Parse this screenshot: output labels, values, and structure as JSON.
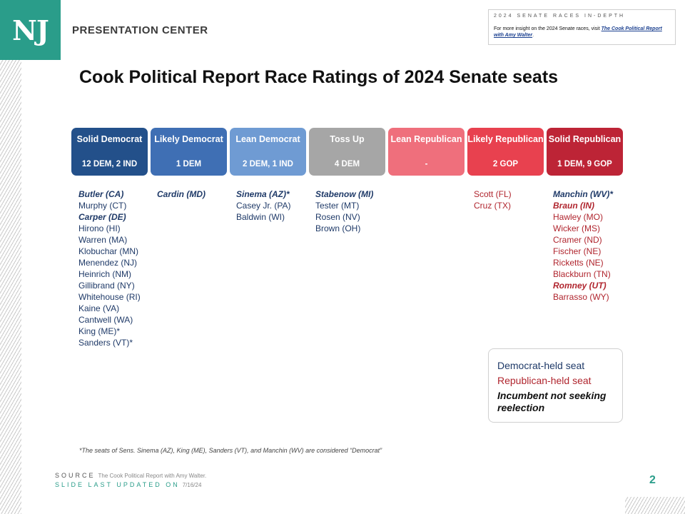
{
  "header": {
    "logo_text": "NJ",
    "brand": "PRESENTATION CENTER"
  },
  "info_box": {
    "title": "2024 SENATE RACES IN-DEPTH",
    "text_prefix": "For more insight on the 2024 Senate races, visit ",
    "link_text": "The Cook Political Report with Amy Walter",
    "text_suffix": "."
  },
  "title": "Cook Political Report Race Ratings of 2024 Senate seats",
  "colors": {
    "solid_dem": "#23508a",
    "likely_dem": "#3f6fb4",
    "lean_dem": "#6f9bd3",
    "toss_up": "#a6a6a6",
    "lean_rep": "#ef6f7c",
    "likely_rep": "#e8414f",
    "solid_rep": "#bd2436",
    "dem_text": "#1f3a68",
    "rep_text": "#b0252e",
    "accent": "#2a9d8a"
  },
  "categories": [
    {
      "label": "Solid Democrat",
      "count": "12 DEM, 2 IND"
    },
    {
      "label": "Likely Democrat",
      "count": "1 DEM"
    },
    {
      "label": "Lean Democrat",
      "count": "2 DEM, 1 IND"
    },
    {
      "label": "Toss Up",
      "count": "4 DEM"
    },
    {
      "label": "Lean Republican",
      "count": "-"
    },
    {
      "label": "Likely Republican",
      "count": "2 GOP"
    },
    {
      "label": "Solid Republican",
      "count": "1 DEM, 9 GOP"
    }
  ],
  "columns": [
    [
      {
        "name": "Butler (CA)",
        "party": "dem",
        "open": true
      },
      {
        "name": "Murphy (CT)",
        "party": "dem",
        "open": false
      },
      {
        "name": "Carper (DE)",
        "party": "dem",
        "open": true
      },
      {
        "name": "Hirono (HI)",
        "party": "dem",
        "open": false
      },
      {
        "name": "Warren (MA)",
        "party": "dem",
        "open": false
      },
      {
        "name": "Klobuchar (MN)",
        "party": "dem",
        "open": false
      },
      {
        "name": "Menendez (NJ)",
        "party": "dem",
        "open": false
      },
      {
        "name": "Heinrich (NM)",
        "party": "dem",
        "open": false
      },
      {
        "name": "Gillibrand (NY)",
        "party": "dem",
        "open": false
      },
      {
        "name": "Whitehouse (RI)",
        "party": "dem",
        "open": false
      },
      {
        "name": "Kaine (VA)",
        "party": "dem",
        "open": false
      },
      {
        "name": "Cantwell (WA)",
        "party": "dem",
        "open": false
      },
      {
        "name": "King (ME)*",
        "party": "dem",
        "open": false
      },
      {
        "name": "Sanders (VT)*",
        "party": "dem",
        "open": false
      }
    ],
    [
      {
        "name": "Cardin (MD)",
        "party": "dem",
        "open": true
      }
    ],
    [
      {
        "name": "Sinema (AZ)*",
        "party": "dem",
        "open": true
      },
      {
        "name": "Casey Jr. (PA)",
        "party": "dem",
        "open": false
      },
      {
        "name": "Baldwin (WI)",
        "party": "dem",
        "open": false
      }
    ],
    [
      {
        "name": "Stabenow (MI)",
        "party": "dem",
        "open": true
      },
      {
        "name": "Tester (MT)",
        "party": "dem",
        "open": false
      },
      {
        "name": "Rosen (NV)",
        "party": "dem",
        "open": false
      },
      {
        "name": "Brown (OH)",
        "party": "dem",
        "open": false
      }
    ],
    [],
    [
      {
        "name": "Scott (FL)",
        "party": "rep",
        "open": false
      },
      {
        "name": "Cruz (TX)",
        "party": "rep",
        "open": false
      }
    ],
    [
      {
        "name": "Manchin (WV)*",
        "party": "dem",
        "open": true
      },
      {
        "name": "Braun (IN)",
        "party": "rep",
        "open": true
      },
      {
        "name": "Hawley (MO)",
        "party": "rep",
        "open": false
      },
      {
        "name": "Wicker (MS)",
        "party": "rep",
        "open": false
      },
      {
        "name": "Cramer (ND)",
        "party": "rep",
        "open": false
      },
      {
        "name": "Fischer (NE)",
        "party": "rep",
        "open": false
      },
      {
        "name": "Ricketts (NE)",
        "party": "rep",
        "open": false
      },
      {
        "name": "Blackburn (TN)",
        "party": "rep",
        "open": false
      },
      {
        "name": "Romney (UT)",
        "party": "rep",
        "open": true
      },
      {
        "name": "Barrasso (WY)",
        "party": "rep",
        "open": false
      }
    ]
  ],
  "legend": {
    "dem": "Democrat-held seat",
    "rep": "Republican-held seat",
    "open": "Incumbent not seeking reelection"
  },
  "footnote": "*The seats of Sens. Sinema (AZ), King (ME), Sanders (VT), and Manchin (WV) are considered “Democrat”",
  "footer": {
    "source_label": "SOURCE",
    "source_value": "The Cook Political Report with Amy Walter.",
    "updated_label": "SLIDE LAST UPDATED ON",
    "updated_value": "7/16/24",
    "page_number": "2"
  }
}
